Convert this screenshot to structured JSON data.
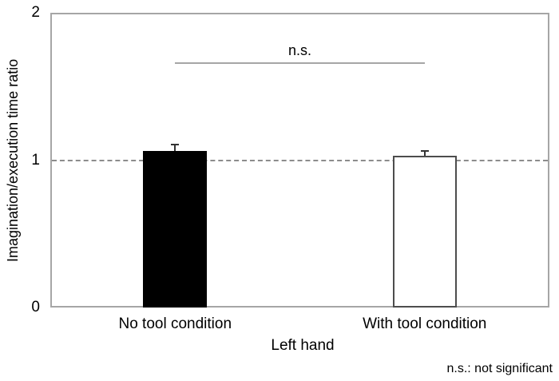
{
  "chart_data": {
    "type": "bar",
    "title": "",
    "categories": [
      "No tool condition",
      "With tool condition"
    ],
    "values": [
      1.06,
      1.03
    ],
    "errors": [
      0.045,
      0.035
    ],
    "bar_styles": [
      {
        "fill": "#000000",
        "stroke": "#000000"
      },
      {
        "fill": "#ffffff",
        "stroke": "#4d4d4d"
      }
    ],
    "xlabel": "Left hand",
    "ylabel": "Imagination/execution time ratio",
    "ylim": [
      0,
      2
    ],
    "yticks": [
      0,
      1,
      2
    ],
    "grid": false,
    "legend": false,
    "reference_line": {
      "y": 1,
      "style": "dashed",
      "color": "#8c8c8c"
    },
    "significance": {
      "label": "n.s.",
      "from_category": 0,
      "to_category": 1,
      "y": 1.66,
      "color": "#a6a6a6"
    },
    "footnote": "n.s.: not significant",
    "colors": {
      "frame": "#a6a6a6",
      "text": "#000000",
      "error_bar": "#333333"
    }
  }
}
